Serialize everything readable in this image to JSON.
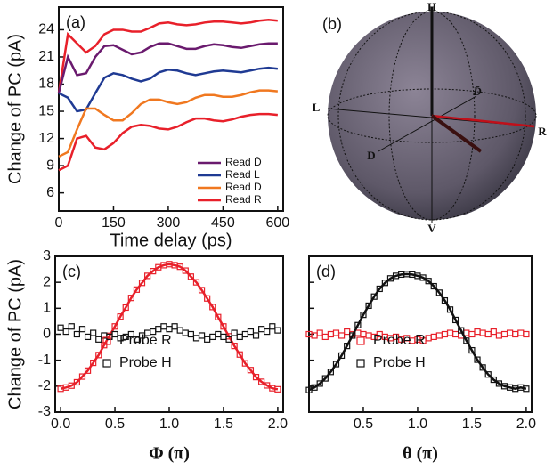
{
  "chart_data": [
    {
      "type": "line",
      "panel_label": "(a)",
      "xlabel": "Time delay (ps)",
      "ylabel": "Change of PC (pA)",
      "x": [
        0,
        25,
        50,
        75,
        100,
        125,
        150,
        175,
        200,
        225,
        250,
        275,
        300,
        325,
        350,
        375,
        400,
        425,
        450,
        475,
        500,
        525,
        550,
        575,
        600
      ],
      "xlim": [
        0,
        615
      ],
      "xticks": [
        0,
        150,
        300,
        450,
        600
      ],
      "ylim": [
        4,
        26.5
      ],
      "yticks": [
        6,
        9,
        12,
        15,
        18,
        21,
        24
      ],
      "legend": "lower right",
      "series": [
        {
          "color": "#e8202a",
          "values": [
            17,
            23.5,
            22.5,
            21.5,
            22.2,
            23.5,
            24,
            24,
            23.8,
            23.8,
            24.2,
            24.7,
            24.8,
            24.6,
            24.5,
            24.6,
            24.8,
            24.9,
            24.9,
            24.8,
            24.7,
            24.8,
            25.0,
            25.1,
            25.0
          ]
        },
        {
          "name": "Read D̄",
          "color": "#6a1a6e",
          "values": [
            17,
            21,
            19,
            19.2,
            21,
            22.2,
            22.3,
            21.8,
            21.3,
            21.5,
            22.1,
            22.5,
            22.5,
            22.2,
            21.9,
            21.9,
            22.2,
            22.4,
            22.3,
            22.1,
            22.0,
            22.2,
            22.4,
            22.5,
            22.5
          ]
        },
        {
          "name": "Read L",
          "color": "#1f3a93",
          "values": [
            17,
            16.5,
            15.0,
            15.2,
            17.0,
            18.7,
            19.2,
            19.0,
            18.6,
            18.3,
            18.6,
            19.3,
            19.6,
            19.5,
            19.2,
            19.0,
            19.2,
            19.4,
            19.5,
            19.4,
            19.3,
            19.5,
            19.7,
            19.8,
            19.7
          ]
        },
        {
          "name": "Read D",
          "color": "#f07820",
          "values": [
            10,
            10.5,
            13,
            15.3,
            15.3,
            14.6,
            14.0,
            14.0,
            14.8,
            15.8,
            16.3,
            16.3,
            16.0,
            15.8,
            16.0,
            16.5,
            16.8,
            16.8,
            16.6,
            16.6,
            16.8,
            17.1,
            17.3,
            17.3,
            17.2
          ]
        },
        {
          "name": "Read R",
          "color": "#e8202a",
          "values": [
            8.5,
            9,
            12,
            12.3,
            11,
            10.8,
            11.5,
            12.6,
            13.3,
            13.5,
            13.4,
            13.1,
            13.0,
            13.3,
            13.8,
            14.2,
            14.2,
            14.0,
            13.9,
            14.1,
            14.4,
            14.6,
            14.7,
            14.7,
            14.6
          ]
        }
      ]
    },
    {
      "type": "sphere",
      "panel_label": "(b)",
      "labels": {
        "H": "H",
        "V": "V",
        "L": "L",
        "R": "R",
        "D": "D",
        "D_bar": "D̄"
      }
    },
    {
      "type": "scatter",
      "panel_label": "(c)",
      "xlabel": "Φ (π)",
      "ylabel": "Change of PC (pA)",
      "x": [
        0,
        0.05,
        0.1,
        0.15,
        0.2,
        0.25,
        0.3,
        0.35,
        0.4,
        0.45,
        0.5,
        0.55,
        0.6,
        0.65,
        0.7,
        0.75,
        0.8,
        0.85,
        0.9,
        0.95,
        1,
        1.05,
        1.1,
        1.15,
        1.2,
        1.25,
        1.3,
        1.35,
        1.4,
        1.45,
        1.5,
        1.55,
        1.6,
        1.65,
        1.7,
        1.75,
        1.8,
        1.85,
        1.9,
        1.95,
        2
      ],
      "xlim": [
        -0.05,
        2.05
      ],
      "xticks": [
        {
          "value": 0,
          "label": "0.0"
        },
        0.5,
        {
          "value": 1,
          "label": "1.0"
        },
        1.5,
        {
          "value": 2,
          "label": "2.0"
        }
      ],
      "ylim": [
        -3,
        3
      ],
      "yticks": [
        -3,
        -2,
        -1,
        0,
        1,
        2,
        3
      ],
      "ytick_labels": true,
      "legend": "lower center",
      "series": [
        {
          "name": "Probe R",
          "color": "#e8202a",
          "fit_line": true,
          "values": [
            -2.1,
            -2.05,
            -1.98,
            -1.85,
            -1.63,
            -1.4,
            -1.1,
            -0.8,
            -0.42,
            -0.06,
            0.3,
            0.68,
            1.03,
            1.4,
            1.72,
            1.98,
            2.25,
            2.43,
            2.58,
            2.66,
            2.7,
            2.66,
            2.6,
            2.45,
            2.22,
            2.0,
            1.7,
            1.38,
            1.05,
            0.66,
            0.3,
            -0.08,
            -0.45,
            -0.78,
            -1.12,
            -1.38,
            -1.65,
            -1.83,
            -1.97,
            -2.08,
            -2.12
          ]
        },
        {
          "name": "Probe H",
          "color": "#111111",
          "fit_line": false,
          "values": [
            0.25,
            0.1,
            0.3,
            0.0,
            0.2,
            -0.1,
            0.05,
            -0.2,
            -0.05,
            -0.1,
            0.0,
            -0.15,
            -0.1,
            0.0,
            -0.2,
            -0.05,
            0.05,
            0.1,
            0.2,
            0.3,
            0.2,
            0.3,
            0.15,
            0.05,
            0.0,
            -0.15,
            -0.05,
            -0.2,
            -0.1,
            0.0,
            -0.1,
            -0.2,
            0.05,
            -0.1,
            0.0,
            0.1,
            -0.05,
            0.2,
            0.1,
            0.3,
            0.15
          ]
        }
      ]
    },
    {
      "type": "scatter",
      "panel_label": "(d)",
      "xlabel": "θ (π)",
      "x": [
        0,
        0.05,
        0.1,
        0.15,
        0.2,
        0.25,
        0.3,
        0.35,
        0.4,
        0.45,
        0.5,
        0.55,
        0.6,
        0.65,
        0.7,
        0.75,
        0.8,
        0.85,
        0.9,
        0.95,
        1,
        1.05,
        1.1,
        1.15,
        1.2,
        1.25,
        1.3,
        1.35,
        1.4,
        1.45,
        1.5,
        1.55,
        1.6,
        1.65,
        1.7,
        1.75,
        1.8,
        1.85,
        1.9,
        1.95,
        2
      ],
      "xlim": [
        0,
        2.05
      ],
      "xticks": [
        0.5,
        {
          "value": 1,
          "label": "1.0"
        },
        1.5,
        {
          "value": 2,
          "label": "2.0"
        }
      ],
      "ylim": [
        -3,
        3
      ],
      "yticks": [
        -3,
        -2,
        -1,
        0,
        1,
        2,
        3
      ],
      "ytick_labels": false,
      "legend": "lower center",
      "series": [
        {
          "name": "Probe R",
          "color": "#e8202a",
          "fit_line": false,
          "values": [
            0.0,
            -0.05,
            0.05,
            -0.1,
            0.0,
            0.05,
            -0.05,
            0.1,
            0.0,
            0.05,
            0.0,
            -0.05,
            -0.1,
            0.0,
            -0.1,
            -0.15,
            -0.1,
            -0.2,
            -0.15,
            -0.25,
            -0.2,
            -0.25,
            -0.15,
            -0.1,
            -0.05,
            0.0,
            0.05,
            0.0,
            -0.05,
            0.05,
            0.0,
            0.1,
            0.05,
            0.0,
            0.1,
            -0.05,
            0.0,
            0.05,
            0.0,
            0.05,
            0.0
          ]
        },
        {
          "name": "Probe H",
          "color": "#111111",
          "fit_line": true,
          "values": [
            -2.15,
            -2.05,
            -1.9,
            -1.7,
            -1.45,
            -1.15,
            -0.82,
            -0.45,
            -0.05,
            0.35,
            0.75,
            1.1,
            1.45,
            1.75,
            1.98,
            2.15,
            2.25,
            2.3,
            2.32,
            2.3,
            2.25,
            2.18,
            2.05,
            1.85,
            1.6,
            1.3,
            0.95,
            0.55,
            0.15,
            -0.25,
            -0.62,
            -0.98,
            -1.28,
            -1.55,
            -1.75,
            -1.9,
            -2.0,
            -2.05,
            -2.1,
            -2.05,
            -2.1
          ]
        }
      ]
    }
  ]
}
